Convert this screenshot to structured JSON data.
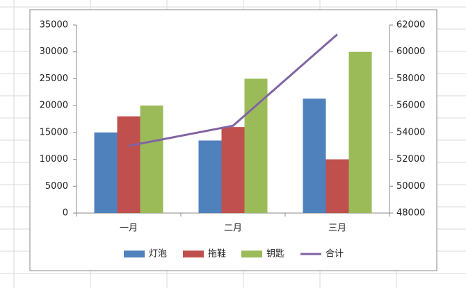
{
  "chart_data": {
    "type": "bar",
    "categories": [
      "一月",
      "二月",
      "三月"
    ],
    "series": [
      {
        "name": "灯泡",
        "color": "#4f81bd",
        "values": [
          15000,
          13500,
          21300
        ]
      },
      {
        "name": "拖鞋",
        "color": "#c0504d",
        "values": [
          18000,
          16000,
          10000
        ]
      },
      {
        "name": "钥匙",
        "color": "#9bbb59",
        "values": [
          20000,
          25000,
          30000
        ]
      },
      {
        "name": "合计",
        "color": "#8064a2",
        "type": "line",
        "axis": "y2",
        "values": [
          53000,
          54500,
          61300
        ]
      }
    ],
    "ylim": [
      0,
      35000
    ],
    "yticks": [
      0,
      5000,
      10000,
      15000,
      20000,
      25000,
      30000,
      35000
    ],
    "y2lim": [
      48000,
      62000
    ],
    "y2ticks": [
      48000,
      50000,
      52000,
      54000,
      56000,
      58000,
      60000,
      62000
    ],
    "legend": "bottom"
  }
}
